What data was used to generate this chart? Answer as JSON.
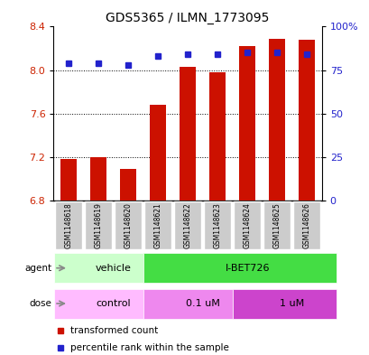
{
  "title": "GDS5365 / ILMN_1773095",
  "samples": [
    "GSM1148618",
    "GSM1148619",
    "GSM1148620",
    "GSM1148621",
    "GSM1148622",
    "GSM1148623",
    "GSM1148624",
    "GSM1148625",
    "GSM1148626"
  ],
  "bar_values": [
    7.18,
    7.2,
    7.09,
    7.68,
    8.03,
    7.98,
    8.22,
    8.29,
    8.28
  ],
  "percentile_values": [
    79,
    79,
    78,
    83,
    84,
    84,
    85,
    85,
    84
  ],
  "bar_bottom": 6.8,
  "ylim": [
    6.8,
    8.4
  ],
  "ylim_right": [
    0,
    100
  ],
  "yticks_left": [
    6.8,
    7.2,
    7.6,
    8.0,
    8.4
  ],
  "yticks_right": [
    0,
    25,
    50,
    75,
    100
  ],
  "bar_color": "#cc1100",
  "dot_color": "#2222cc",
  "bar_width": 0.55,
  "agent_labels": [
    {
      "label": "vehicle",
      "start": 0,
      "end": 3,
      "color": "#ccffcc"
    },
    {
      "label": "I-BET726",
      "start": 3,
      "end": 9,
      "color": "#44dd44"
    }
  ],
  "dose_labels": [
    {
      "label": "control",
      "start": 0,
      "end": 3,
      "color": "#ffbbff"
    },
    {
      "label": "0.1 uM",
      "start": 3,
      "end": 6,
      "color": "#ee88ee"
    },
    {
      "label": "1 uM",
      "start": 6,
      "end": 9,
      "color": "#cc44cc"
    }
  ],
  "sample_bg": "#cccccc",
  "plot_bg": "#ffffff",
  "grid_dotted_color": "#000000",
  "left_label_color": "#cc2200",
  "right_label_color": "#2222cc"
}
